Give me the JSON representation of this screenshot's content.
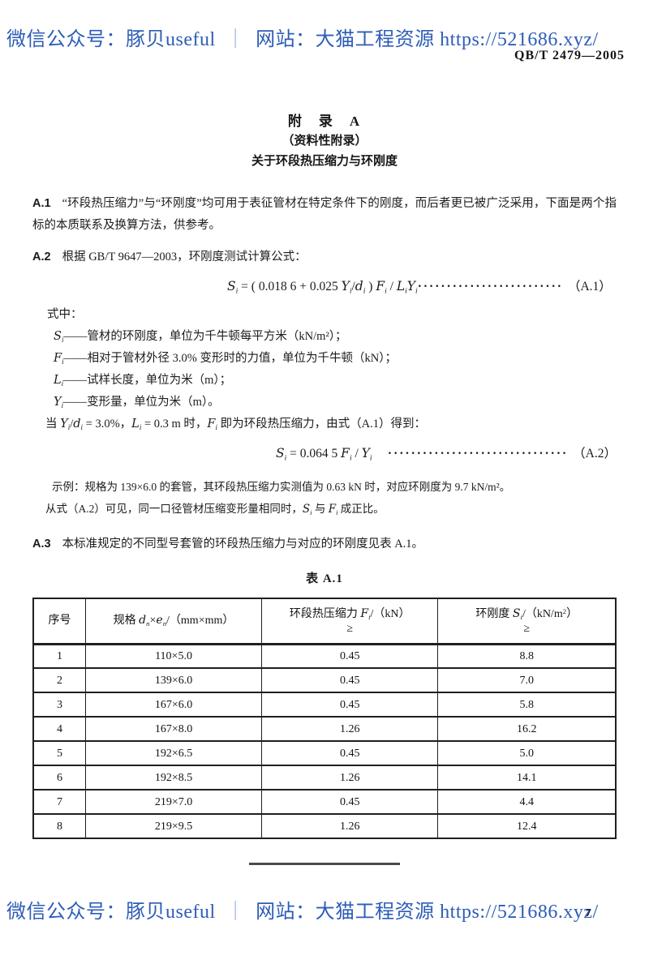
{
  "colors": {
    "watermark_blue": "#2d5cb8",
    "text": "#1b1b1b"
  },
  "watermark": {
    "account_label": "微信公众号：豚贝useful",
    "separator": "｜",
    "site_label": "网站：大猫工程资源",
    "url": "https://521686.xyz/"
  },
  "header": {
    "doc_code": "QB/T 2479—2005"
  },
  "appendix": {
    "title": "附　录　A",
    "subtitle": "（资料性附录）",
    "heading": "关于环段热压缩力与环刚度"
  },
  "clause_a1": {
    "label": "A.1",
    "text": "“环段热压缩力”与“环刚度”均可用于表征管材在特定条件下的刚度，而后者更已被广泛采用，下面是两个指标的本质联系及换算方法，供参考。"
  },
  "clause_a2": {
    "label": "A.2",
    "text": "根据 GB/T 9647—2003，环刚度测试计算公式："
  },
  "formula_a1": {
    "parts": [
      {
        "i": "S"
      },
      {
        "sub": "i"
      },
      {
        "t": " = ( 0.018 6 + 0.025 "
      },
      {
        "i": "Y"
      },
      {
        "sub": "i"
      },
      {
        "t": "/"
      },
      {
        "i": "d"
      },
      {
        "sub": "i"
      },
      {
        "t": " ) "
      },
      {
        "i": "F"
      },
      {
        "sub": "i"
      },
      {
        "t": " / "
      },
      {
        "i": "L"
      },
      {
        "sub": "i"
      },
      {
        "i": "Y"
      },
      {
        "sub": "i"
      }
    ],
    "leader": "·························",
    "ref": "（A.1）"
  },
  "where": {
    "label": "式中：",
    "items": [
      {
        "var_parts": [
          {
            "i": "S"
          },
          {
            "sub": "i"
          }
        ],
        "text": "——管材的环刚度，单位为千牛顿每平方米（kN/m²）；"
      },
      {
        "var_parts": [
          {
            "i": "F"
          },
          {
            "sub": "i"
          }
        ],
        "text": "——相对于管材外径 3.0% 变形时的力值，单位为千牛顿（kN）；"
      },
      {
        "var_parts": [
          {
            "i": "L"
          },
          {
            "sub": "i"
          }
        ],
        "text": "——试样长度，单位为米（m）；"
      },
      {
        "var_parts": [
          {
            "i": "Y"
          },
          {
            "sub": "i"
          }
        ],
        "text": "——变形量，单位为米（m）。"
      }
    ]
  },
  "condition_line": {
    "parts": [
      {
        "t": "当 "
      },
      {
        "i": "Y"
      },
      {
        "sub": "i"
      },
      {
        "t": "/"
      },
      {
        "i": "d"
      },
      {
        "sub": "i"
      },
      {
        "t": " = 3.0%，"
      },
      {
        "i": "L"
      },
      {
        "sub": "i"
      },
      {
        "t": " = 0.3 m 时，"
      },
      {
        "i": "F"
      },
      {
        "sub": "i"
      },
      {
        "t": " 即为环段热压缩力，由式（A.1）得到："
      }
    ]
  },
  "formula_a2": {
    "parts": [
      {
        "i": "S"
      },
      {
        "sub": "i"
      },
      {
        "t": " = 0.064 5 "
      },
      {
        "i": "F"
      },
      {
        "sub": "i"
      },
      {
        "t": " / "
      },
      {
        "i": "Y"
      },
      {
        "sub": "i"
      }
    ],
    "leader": "·······························",
    "ref": "（A.2）"
  },
  "example": {
    "line1": "示例：规格为 139×6.0 的套管，其环段热压缩力实测值为 0.63 kN 时，对应环刚度为 9.7 kN/m²。",
    "line2_parts": [
      {
        "t": "从式（A.2）可见，同一口径管材压缩变形量相同时，"
      },
      {
        "i": "S"
      },
      {
        "sub": "i"
      },
      {
        "t": " 与 "
      },
      {
        "i": "F"
      },
      {
        "sub": "i"
      },
      {
        "t": " 成正比。"
      }
    ]
  },
  "clause_a3": {
    "label": "A.3",
    "text": "本标准规定的不同型号套管的环段热压缩力与对应的环刚度见表 A.1。"
  },
  "table": {
    "caption": "表 A.1",
    "columns": [
      {
        "title_parts": [
          {
            "t": "序号"
          }
        ],
        "note": ""
      },
      {
        "title_parts": [
          {
            "t": "规格 "
          },
          {
            "i": "d"
          },
          {
            "sub": "n"
          },
          {
            "t": "×"
          },
          {
            "i": "e"
          },
          {
            "sub": "n"
          },
          {
            "t": "/（mm×mm）"
          }
        ],
        "note": ""
      },
      {
        "title_parts": [
          {
            "t": "环段热压缩力 "
          },
          {
            "i": "F"
          },
          {
            "sub": "i"
          },
          {
            "t": "/（kN）"
          }
        ],
        "note": "≥"
      },
      {
        "title_parts": [
          {
            "t": "环刚度 "
          },
          {
            "i": "S"
          },
          {
            "sub": "i"
          },
          {
            "t": "/（kN/m"
          },
          {
            "sup": "2"
          },
          {
            "t": "）"
          }
        ],
        "note": "≥"
      }
    ],
    "rows": [
      [
        "1",
        "110×5.0",
        "0.45",
        "8.8"
      ],
      [
        "2",
        "139×6.0",
        "0.45",
        "7.0"
      ],
      [
        "3",
        "167×6.0",
        "0.45",
        "5.8"
      ],
      [
        "4",
        "167×8.0",
        "1.26",
        "16.2"
      ],
      [
        "5",
        "192×6.5",
        "0.45",
        "5.0"
      ],
      [
        "6",
        "192×8.5",
        "1.26",
        "14.1"
      ],
      [
        "7",
        "219×7.0",
        "0.45",
        "4.4"
      ],
      [
        "8",
        "219×9.5",
        "1.26",
        "12.4"
      ]
    ]
  },
  "footer": {
    "page_number": "7"
  }
}
